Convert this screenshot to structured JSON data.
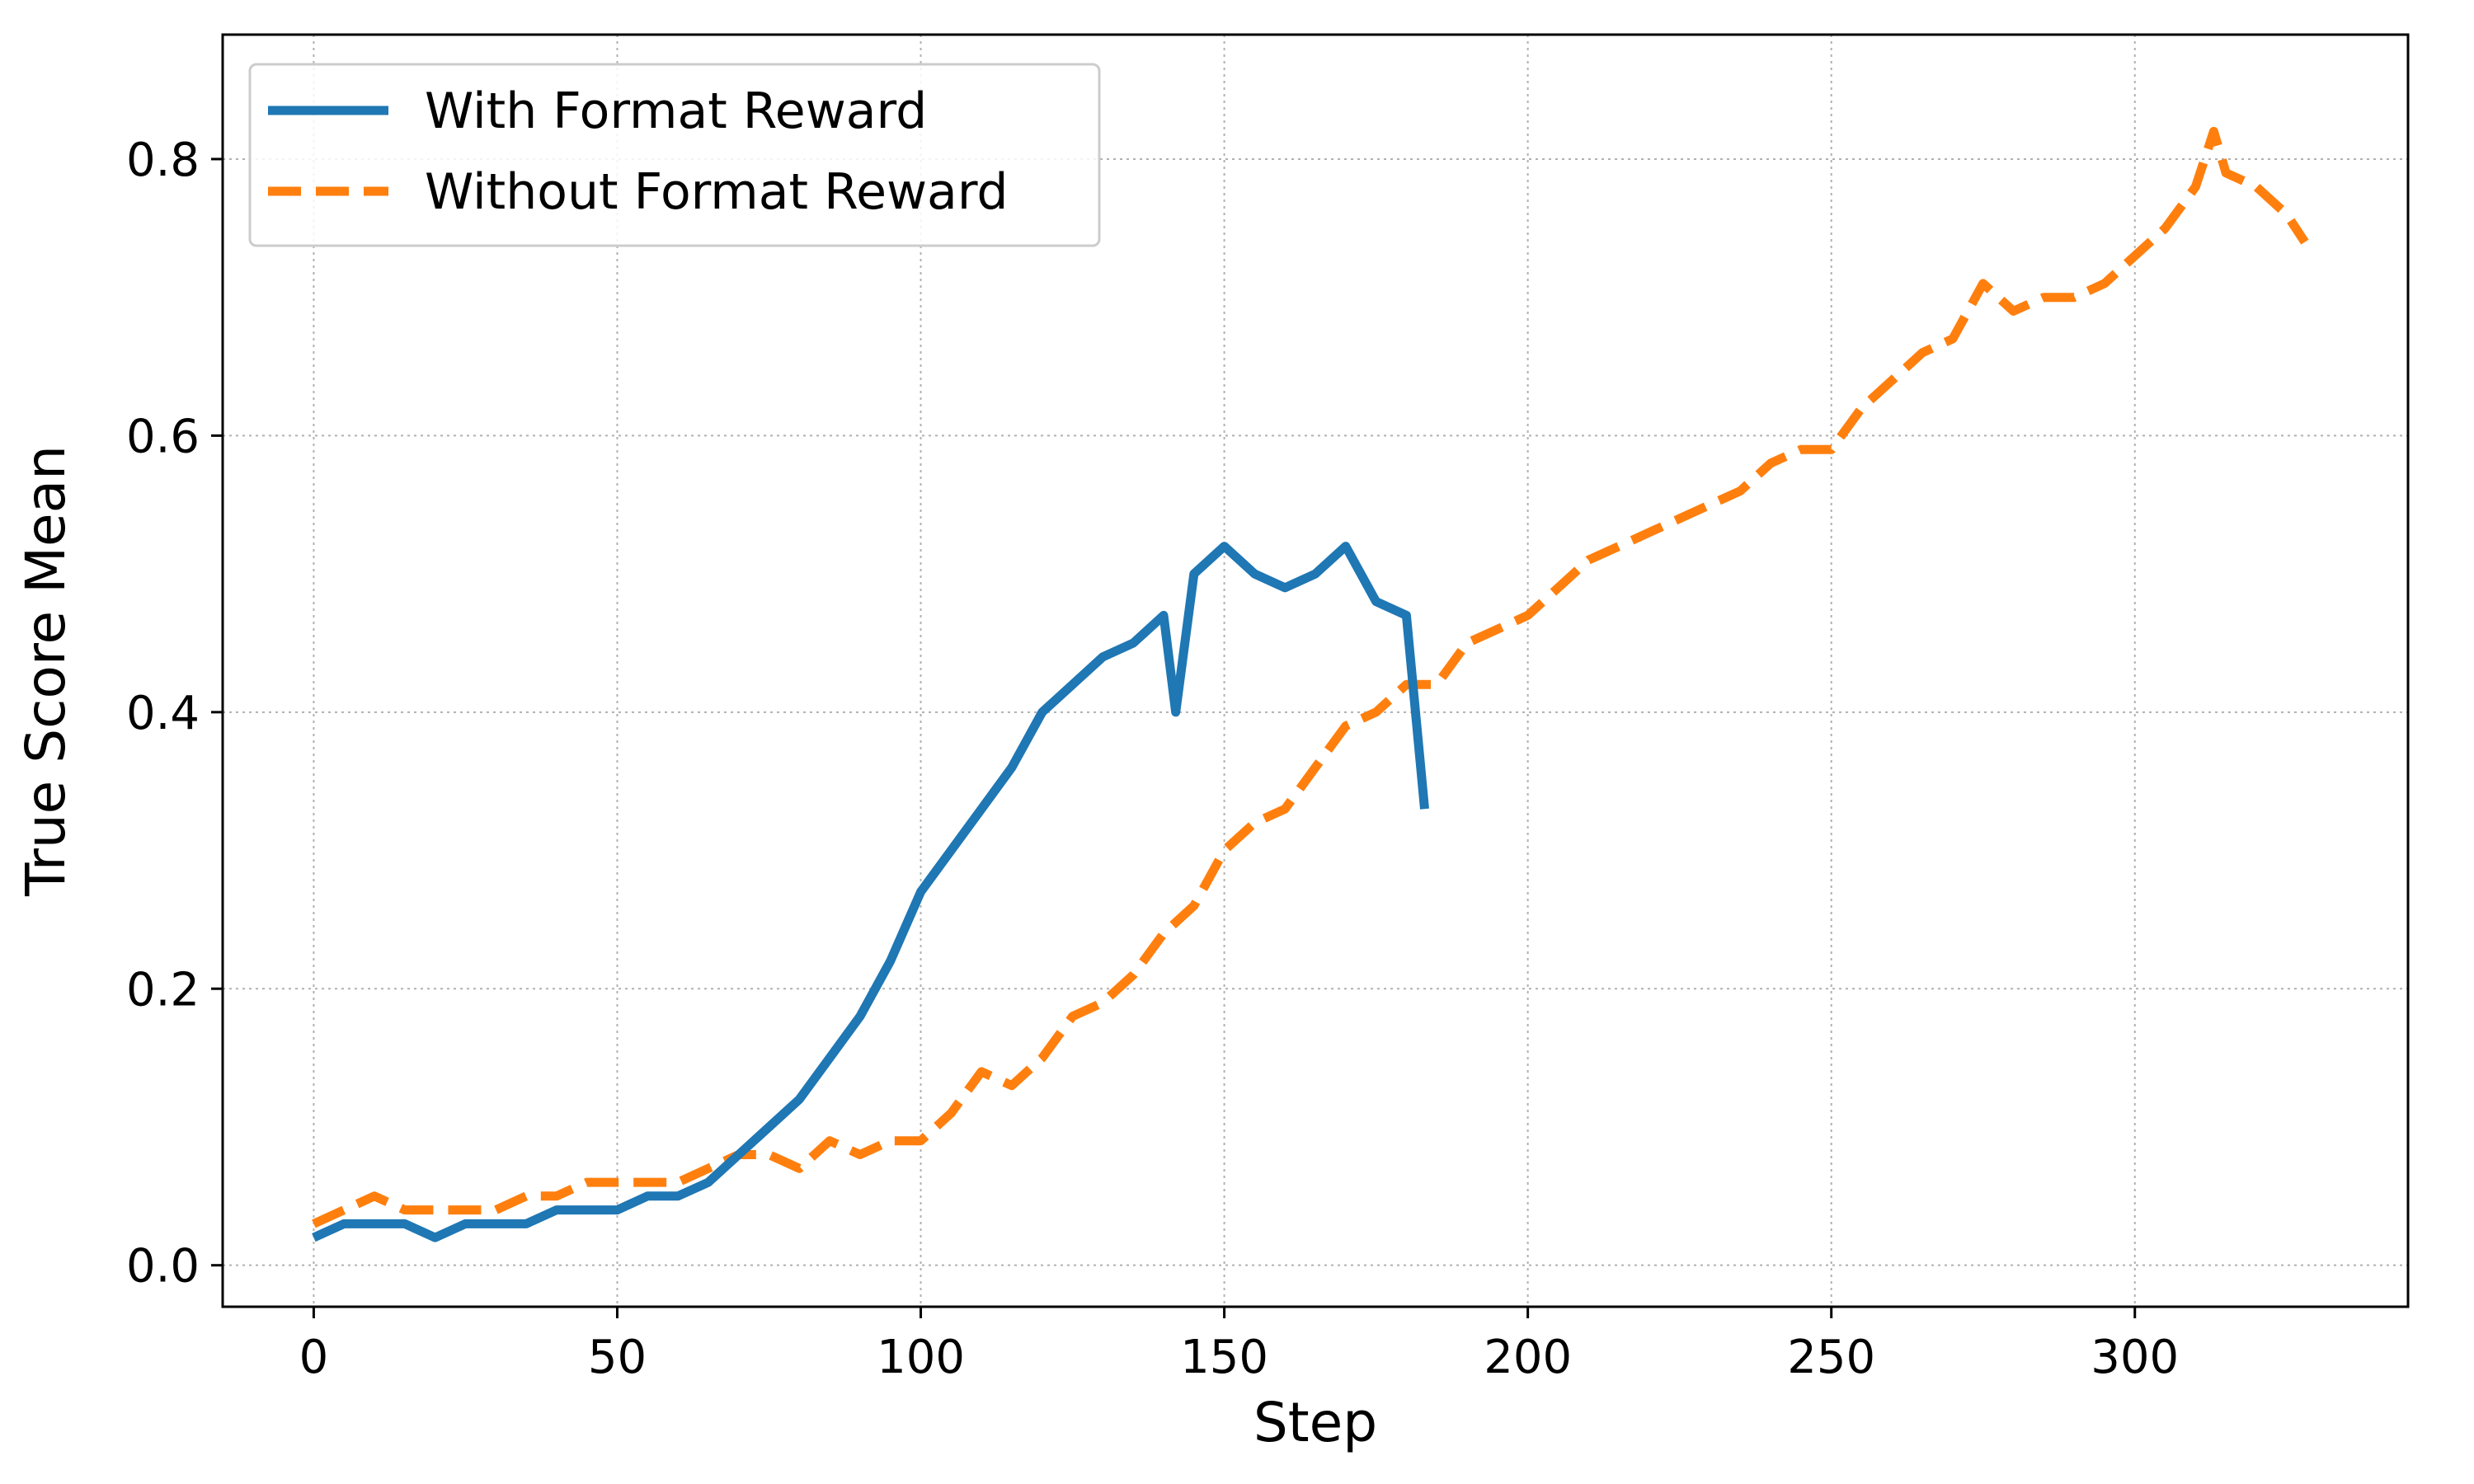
{
  "chart_data": {
    "type": "line",
    "title": "",
    "xlabel": "Step",
    "ylabel": "True Score Mean",
    "xlim": [
      -15,
      345
    ],
    "ylim": [
      -0.03,
      0.89
    ],
    "xticks": [
      0,
      50,
      100,
      150,
      200,
      250,
      300
    ],
    "xtick_labels": [
      "0",
      "50",
      "100",
      "150",
      "200",
      "250",
      "300"
    ],
    "yticks": [
      0.0,
      0.2,
      0.4,
      0.6,
      0.8
    ],
    "ytick_labels": [
      "0.0",
      "0.2",
      "0.4",
      "0.6",
      "0.8"
    ],
    "grid": true,
    "legend_position": "top-left",
    "series": [
      {
        "name": "With Format Reward",
        "color": "#1f77b4",
        "style": "solid",
        "x": [
          0,
          5,
          10,
          15,
          20,
          25,
          30,
          35,
          40,
          45,
          50,
          55,
          60,
          65,
          70,
          75,
          80,
          85,
          90,
          95,
          100,
          105,
          110,
          115,
          120,
          125,
          130,
          135,
          140,
          142,
          145,
          150,
          155,
          160,
          165,
          170,
          175,
          180,
          183
        ],
        "y": [
          0.02,
          0.03,
          0.03,
          0.03,
          0.02,
          0.03,
          0.03,
          0.03,
          0.04,
          0.04,
          0.04,
          0.05,
          0.05,
          0.06,
          0.08,
          0.1,
          0.12,
          0.15,
          0.18,
          0.22,
          0.27,
          0.3,
          0.33,
          0.36,
          0.4,
          0.42,
          0.44,
          0.45,
          0.47,
          0.4,
          0.5,
          0.52,
          0.5,
          0.49,
          0.5,
          0.52,
          0.48,
          0.47,
          0.33
        ]
      },
      {
        "name": "Without Format Reward",
        "color": "#ff7f0e",
        "style": "dashed",
        "x": [
          0,
          5,
          10,
          15,
          20,
          25,
          30,
          35,
          40,
          45,
          50,
          55,
          60,
          65,
          70,
          75,
          80,
          85,
          90,
          95,
          100,
          105,
          110,
          115,
          120,
          125,
          130,
          135,
          140,
          145,
          150,
          155,
          160,
          165,
          170,
          175,
          180,
          185,
          190,
          195,
          200,
          205,
          210,
          215,
          220,
          225,
          230,
          235,
          240,
          245,
          250,
          255,
          260,
          265,
          270,
          275,
          280,
          285,
          290,
          295,
          300,
          305,
          310,
          313,
          315,
          320,
          325,
          328
        ],
        "y": [
          0.03,
          0.04,
          0.05,
          0.04,
          0.04,
          0.04,
          0.04,
          0.05,
          0.05,
          0.06,
          0.06,
          0.06,
          0.06,
          0.07,
          0.08,
          0.08,
          0.07,
          0.09,
          0.08,
          0.09,
          0.09,
          0.11,
          0.14,
          0.13,
          0.15,
          0.18,
          0.19,
          0.21,
          0.24,
          0.26,
          0.3,
          0.32,
          0.33,
          0.36,
          0.39,
          0.4,
          0.42,
          0.42,
          0.45,
          0.46,
          0.47,
          0.49,
          0.51,
          0.52,
          0.53,
          0.54,
          0.55,
          0.56,
          0.58,
          0.59,
          0.59,
          0.62,
          0.64,
          0.66,
          0.67,
          0.71,
          0.69,
          0.7,
          0.7,
          0.71,
          0.73,
          0.75,
          0.78,
          0.82,
          0.79,
          0.78,
          0.76,
          0.74
        ]
      }
    ]
  }
}
